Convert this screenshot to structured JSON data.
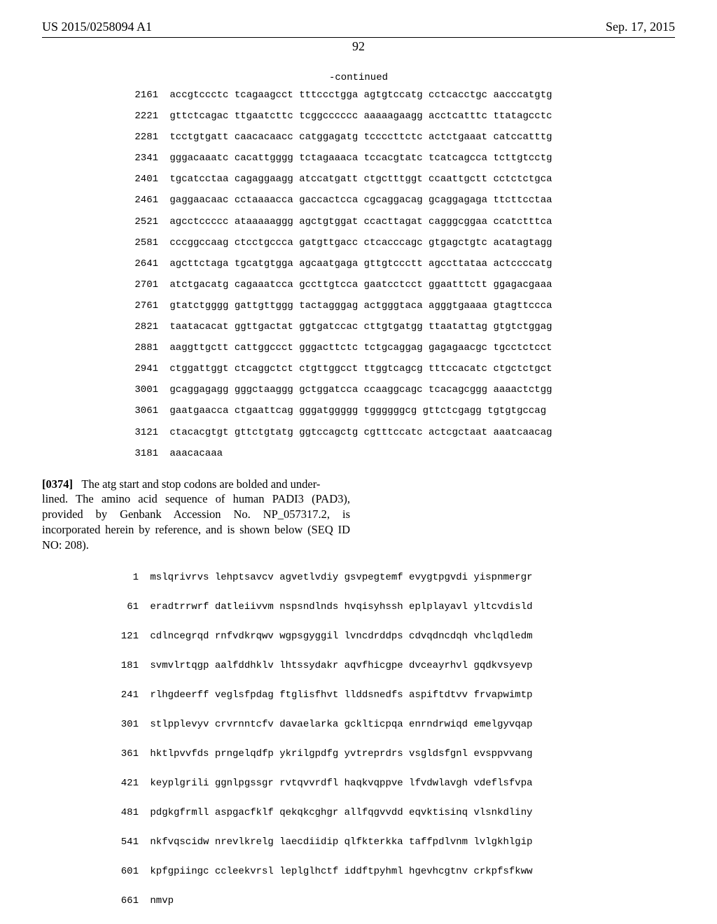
{
  "header": {
    "left": "US 2015/0258094 A1",
    "right": "Sep. 17, 2015"
  },
  "pagenum": "92",
  "continued_label": "-continued",
  "dna_seq": [
    {
      "n": "2161",
      "s": "accgtccctc tcagaagcct tttccctgga agtgtccatg cctcacctgc aacccatgtg"
    },
    {
      "n": "2221",
      "s": "gttctcagac ttgaatcttc tcggcccccc aaaaagaagg acctcatttc ttatagcctc"
    },
    {
      "n": "2281",
      "s": "tcctgtgatt caacacaacc catggagatg tccccttctc actctgaaat catccatttg"
    },
    {
      "n": "2341",
      "s": "gggacaaatc cacattgggg tctagaaaca tccacgtatc tcatcagcca tcttgtcctg"
    },
    {
      "n": "2401",
      "s": "tgcatcctaa cagaggaagg atccatgatt ctgctttggt ccaattgctt cctctctgca"
    },
    {
      "n": "2461",
      "s": "gaggaacaac cctaaaacca gaccactcca cgcaggacag gcaggagaga ttcttcctaa"
    },
    {
      "n": "2521",
      "s": "agcctccccc ataaaaaggg agctgtggat ccacttagat cagggcggaa ccatctttca"
    },
    {
      "n": "2581",
      "s": "cccggccaag ctcctgccca gatgttgacc ctcacccagc gtgagctgtc acatagtagg"
    },
    {
      "n": "2641",
      "s": "agcttctaga tgcatgtgga agcaatgaga gttgtccctt agccttataa actccccatg"
    },
    {
      "n": "2701",
      "s": "atctgacatg cagaaatcca gccttgtcca gaatcctcct ggaatttctt ggagacgaaa"
    },
    {
      "n": "2761",
      "s": "gtatctgggg gattgttggg tactagggag actgggtaca agggtgaaaa gtagttccca"
    },
    {
      "n": "2821",
      "s": "taatacacat ggttgactat ggtgatccac cttgtgatgg ttaatattag gtgtctggag"
    },
    {
      "n": "2881",
      "s": "aaggttgctt cattggccct gggacttctc tctgcaggag gagagaacgc tgcctctcct"
    },
    {
      "n": "2941",
      "s": "ctggattggt ctcaggctct ctgttggcct ttggtcagcg tttccacatc ctgctctgct"
    },
    {
      "n": "3001",
      "s": "gcaggagagg gggctaaggg gctggatcca ccaaggcagc tcacagcggg aaaactctgg"
    },
    {
      "n": "3061",
      "s": "gaatgaacca ctgaattcag gggatggggg tggggggcg gttctcgagg tgtgtgccag"
    },
    {
      "n": "3121",
      "s": "ctacacgtgt gttctgtatg ggtccagctg cgtttccatc actcgctaat aaatcaacag"
    },
    {
      "n": "3181",
      "s": "aaacacaaa"
    }
  ],
  "paragraph": {
    "refnum": "[0374]",
    "body_start": "The atg start and stop codons are bolded and under",
    "body_rest": "lined. The amino acid sequence of human PADI3 (PAD3), provided by Genbank Accession No. NP_057317.2, is incorporated herein by reference, and is shown below (SEQ ID NO: 208)."
  },
  "aa_seq": [
    {
      "n": "1",
      "s": "mslqrivrvs lehptsavcv agvetlvdiy gsvpegtemf evygtpgvdi yispnmergr"
    },
    {
      "n": "61",
      "s": "eradtrrwrf datleiivvm nspsndlnds hvqisyhssh eplplayavl yltcvdisld"
    },
    {
      "n": "121",
      "s": "cdlncegrqd rnfvdkrqwv wgpsgyggil lvncdrddps cdvqdncdqh vhclqdledm"
    },
    {
      "n": "181",
      "s": "svmvlrtqgp aalfddhklv lhtssydakr aqvfhicgpe dvceayrhvl gqdkvsyevp"
    },
    {
      "n": "241",
      "s": "rlhgdeerff veglsfpdag ftglisfhvt llddsnedfs aspiftdtvv frvapwimtp"
    },
    {
      "n": "301",
      "s": "stlpplevyv crvrnntcfv davaelarka gcklticpqa enrndrwiqd emelgyvqap"
    },
    {
      "n": "361",
      "s": "hktlpvvfds prngelqdfp ykrilgpdfg yvtreprdrs vsgldsfgnl evsppvvang"
    },
    {
      "n": "421",
      "s": "keyplgrili ggnlpgssgr rvtqvvrdfl haqkvqppve lfvdwlavgh vdeflsfvpa"
    },
    {
      "n": "481",
      "s": "pdgkgfrmll aspgacfklf qekqkcghgr allfqgvvdd eqvktisinq vlsnkdliny"
    },
    {
      "n": "541",
      "s": "nkfvqscidw nrevlkrelg laecdiidip qlfkterkka taffpdlvnm lvlgkhlgip"
    },
    {
      "n": "601",
      "s": "kpfgpiingc ccleekvrsl leplglhctf iddftpyhml hgevhcgtnv crkpfsfkww"
    },
    {
      "n": "661",
      "s": "nmvp"
    }
  ]
}
